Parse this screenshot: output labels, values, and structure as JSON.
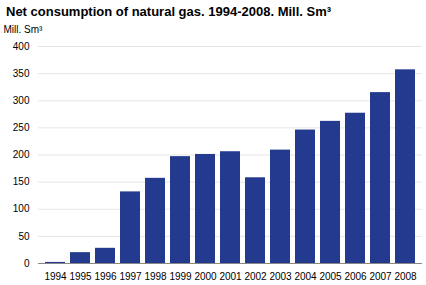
{
  "chart_data": {
    "type": "bar",
    "title": "Net consumption of natural gas. 1994-2008. Mill. Sm³",
    "y_label": "Mill. Sm³",
    "categories": [
      "1994",
      "1995",
      "1996",
      "1997",
      "1998",
      "1999",
      "2000",
      "2001",
      "2002",
      "2003",
      "2004",
      "2005",
      "2006",
      "2007",
      "2008"
    ],
    "values": [
      2,
      20,
      28,
      132,
      157,
      197,
      201,
      206,
      158,
      209,
      246,
      262,
      277,
      315,
      357
    ],
    "color": "#233a8f",
    "ylim": [
      0,
      400
    ],
    "yticks": [
      0,
      50,
      100,
      150,
      200,
      250,
      300,
      350,
      400
    ],
    "grid": true
  }
}
